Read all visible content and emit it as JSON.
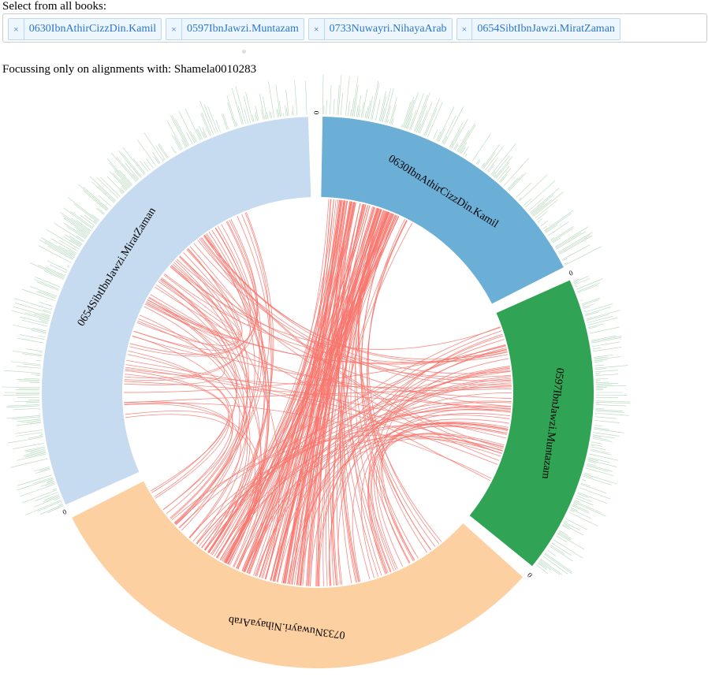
{
  "header": {
    "label": "Select from all books:"
  },
  "tags": {
    "remove_icon": "×",
    "items": [
      "0630IbnAthirCizzDin.Kamil",
      "0597IbnJawzi.Muntazam",
      "0733Nuwayri.NihayaArab",
      "0654SibtIbnJawzi.MiratZaman"
    ]
  },
  "focus": {
    "text": "Focussing only on alignments with: Shamela0010283"
  },
  "diagram": {
    "groups": [
      {
        "label": "0630IbnAthirCizzDin.Kamil",
        "start_tick": 0,
        "color": "#6baed6"
      },
      {
        "label": "0597IbnJawzi.Muntazam",
        "start_tick": 0,
        "color": "#31a354"
      },
      {
        "label": "0733Nuwayri.NihayaArab",
        "start_tick": 0,
        "color": "#fdd0a2"
      },
      {
        "label": "0654SibtIbnJawzi.MiratZaman",
        "start_tick": 0,
        "color": "#c6dbef"
      }
    ],
    "chord_color": "#f8766d",
    "histogram_color": "#74b47f"
  }
}
